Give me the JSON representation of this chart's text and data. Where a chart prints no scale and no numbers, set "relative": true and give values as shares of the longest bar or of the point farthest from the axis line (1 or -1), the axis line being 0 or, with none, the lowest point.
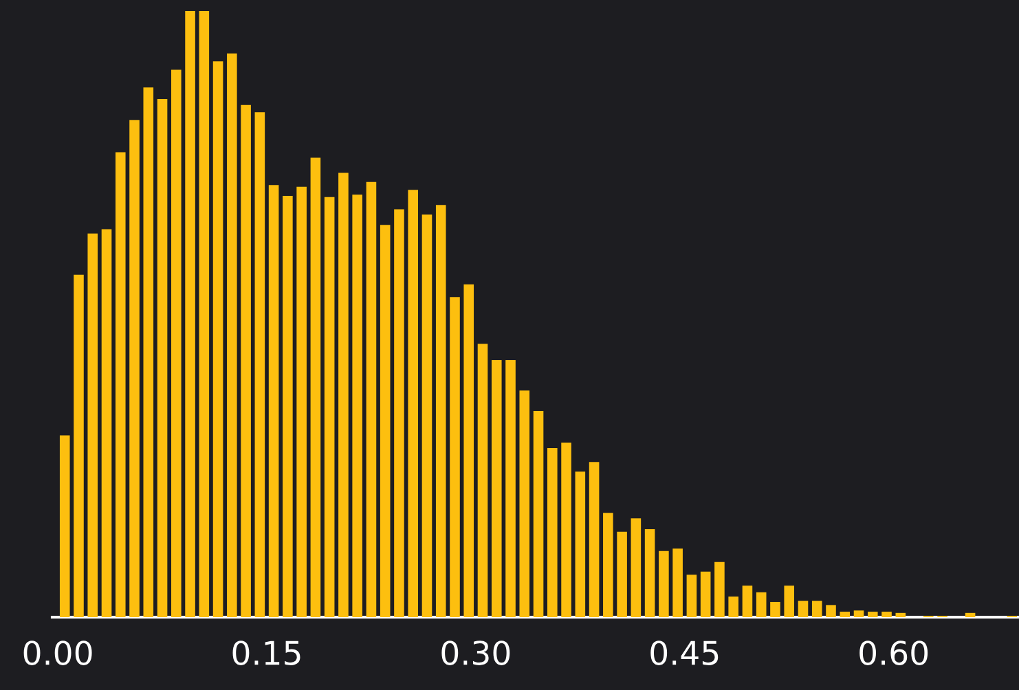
{
  "chart_data": {
    "type": "bar",
    "relative": true,
    "color": "#fdbf0f",
    "x": [
      0.005,
      0.015,
      0.025,
      0.035,
      0.045,
      0.055,
      0.065,
      0.075,
      0.085,
      0.095,
      0.105,
      0.115,
      0.125,
      0.135,
      0.145,
      0.155,
      0.165,
      0.175,
      0.185,
      0.195,
      0.205,
      0.215,
      0.225,
      0.235,
      0.245,
      0.255,
      0.265,
      0.275,
      0.285,
      0.295,
      0.305,
      0.315,
      0.325,
      0.335,
      0.345,
      0.355,
      0.365,
      0.375,
      0.385,
      0.395,
      0.405,
      0.415,
      0.425,
      0.435,
      0.445,
      0.455,
      0.465,
      0.475,
      0.485,
      0.495,
      0.505,
      0.515,
      0.525,
      0.535,
      0.545,
      0.555,
      0.565,
      0.575,
      0.585,
      0.595,
      0.605,
      0.615,
      0.625,
      0.635,
      0.645,
      0.655,
      0.665,
      0.675,
      0.685
    ],
    "values": [
      0.3,
      0.565,
      0.633,
      0.64,
      0.767,
      0.82,
      0.874,
      0.855,
      0.903,
      1.0,
      1.0,
      0.917,
      0.93,
      0.845,
      0.833,
      0.713,
      0.695,
      0.71,
      0.758,
      0.693,
      0.733,
      0.697,
      0.718,
      0.647,
      0.673,
      0.705,
      0.664,
      0.68,
      0.528,
      0.549,
      0.451,
      0.424,
      0.424,
      0.374,
      0.34,
      0.279,
      0.288,
      0.24,
      0.256,
      0.172,
      0.141,
      0.163,
      0.145,
      0.109,
      0.113,
      0.07,
      0.075,
      0.091,
      0.034,
      0.052,
      0.041,
      0.025,
      0.052,
      0.027,
      0.027,
      0.02,
      0.009,
      0.011,
      0.009,
      0.009,
      0.007,
      0,
      0.002,
      0.002,
      0,
      0.007,
      0,
      0,
      0.002
    ],
    "xlim": [
      -0.004,
      0.69
    ],
    "xticks": [
      {
        "value": 0,
        "label": "0.00"
      },
      {
        "value": 0.15,
        "label": "0.15"
      },
      {
        "value": 0.3,
        "label": "0.30"
      },
      {
        "value": 0.45,
        "label": "0.45"
      },
      {
        "value": 0.6,
        "label": "0.60"
      }
    ],
    "grid": false
  }
}
